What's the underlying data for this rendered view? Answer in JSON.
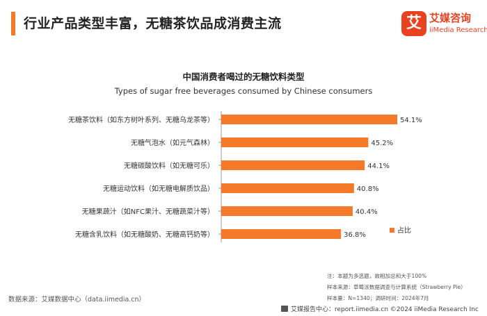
{
  "header": {
    "title": "行业产品类型丰富，无糖茶饮品成消费主流"
  },
  "logo": {
    "mark": "艾",
    "name_cn": "艾媒咨询",
    "name_en": "iiMedia Research"
  },
  "chart_data": {
    "type": "bar",
    "orientation": "horizontal",
    "title": "中国消费者喝过的无糖饮料类型",
    "subtitle": "Types of sugar free beverages consumed by Chinese consumers",
    "categories": [
      "无糖茶饮料（如东方树叶系列、无糖乌龙茶等）",
      "无糖气泡水（如元气森林）",
      "无糖碳酸饮料（如无糖可乐）",
      "无糖运动饮料（如无糖电解质饮品）",
      "无糖果蔬汁（如NFC果汁、无糖蔬菜汁等）",
      "无糖含乳饮料（如无糖酸奶、无糖高钙奶等）"
    ],
    "series": [
      {
        "name": "占比",
        "values": [
          54.1,
          45.2,
          44.1,
          40.8,
          40.4,
          36.8
        ]
      }
    ],
    "value_labels": [
      "54.1%",
      "45.2%",
      "44.1%",
      "40.8%",
      "40.4%",
      "36.8%"
    ],
    "unit": "%",
    "xlim": [
      0,
      54.1
    ],
    "grid": false,
    "legend_position": "right",
    "colors": {
      "bar": "#f47a2a",
      "axis": "#999999"
    }
  },
  "notes": {
    "line1": "注：本题为多选题，故相加总和大于100%",
    "line2": "样本来源：草莓派数据调查与计算系统（Strawberry Pie）",
    "line3": "样本量：N=1340；调研时间：2024年7月"
  },
  "source": "数据来源：艾媒数据中心（data.iimedia.cn）",
  "footer": {
    "text": "艾媒报告中心：report.iimedia.cn  ©2024  iiMedia Research  Inc"
  }
}
